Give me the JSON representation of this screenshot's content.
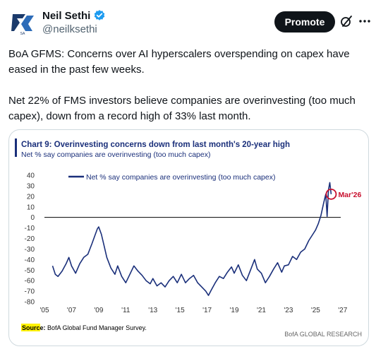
{
  "author": {
    "display_name": "Neil Sethi",
    "handle": "@neilksethi",
    "avatar_text": "SA"
  },
  "actions": {
    "promote_label": "Promote"
  },
  "tweet": {
    "paragraph1": "BoA GFMS: Concerns over AI hyperscalers overspending on capex have eased in the past few weeks.",
    "paragraph2": "Net 22% of FMS investors believe companies are overinvesting (too much capex), down from  a record high of 33% last month."
  },
  "colors": {
    "chart_line": "#1a2f7a",
    "accent_bar": "#1a2f7a",
    "highlight_circle": "#c8102e",
    "annotation_text": "#c8102e",
    "source_highlight": "#fff200",
    "verified": "#1d9bf0"
  },
  "icons": {
    "verified": "verified-badge-icon",
    "grok": "grok-icon",
    "more": "more-icon"
  },
  "chart_data": {
    "type": "line",
    "title": "Chart 9: Overinvesting concerns down from last month's 20-year high",
    "subtitle": "Net % say companies are overinvesting (too much capex)",
    "legend": "Net % say companies are overinvesting (too much capex)",
    "legend_position": "top-left",
    "annotation": "Mar'26",
    "source_label": "Source:",
    "source_text": " BofA Global Fund Manager Survey.",
    "footer": "BofA GLOBAL RESEARCH",
    "xlabel": "",
    "ylabel": "",
    "ylim": [
      -80,
      40
    ],
    "xlim": [
      2005,
      2028
    ],
    "yticks": [
      "40",
      "30",
      "20",
      "10",
      "0",
      "-10",
      "-20",
      "-30",
      "-40",
      "-50",
      "-60",
      "-70",
      "-80"
    ],
    "xticks": [
      "'05",
      "'07",
      "'09",
      "'11",
      "'13",
      "'15",
      "'17",
      "'19",
      "'21",
      "'23",
      "'25",
      "'27"
    ],
    "grid": false,
    "series": [
      {
        "name": "Net % say companies are overinvesting (too much capex)",
        "points": [
          [
            2005.6,
            -46
          ],
          [
            2005.8,
            -54
          ],
          [
            2006.0,
            -56
          ],
          [
            2006.3,
            -51
          ],
          [
            2006.6,
            -44
          ],
          [
            2006.8,
            -38
          ],
          [
            2007.0,
            -46
          ],
          [
            2007.3,
            -53
          ],
          [
            2007.6,
            -44
          ],
          [
            2007.9,
            -38
          ],
          [
            2008.2,
            -35
          ],
          [
            2008.5,
            -25
          ],
          [
            2008.7,
            -18
          ],
          [
            2008.9,
            -11
          ],
          [
            2009.0,
            -9
          ],
          [
            2009.2,
            -16
          ],
          [
            2009.4,
            -27
          ],
          [
            2009.6,
            -38
          ],
          [
            2009.9,
            -48
          ],
          [
            2010.2,
            -54
          ],
          [
            2010.4,
            -46
          ],
          [
            2010.7,
            -56
          ],
          [
            2011.0,
            -62
          ],
          [
            2011.3,
            -54
          ],
          [
            2011.6,
            -46
          ],
          [
            2011.9,
            -51
          ],
          [
            2012.2,
            -55
          ],
          [
            2012.5,
            -60
          ],
          [
            2012.8,
            -63
          ],
          [
            2013.0,
            -58
          ],
          [
            2013.3,
            -65
          ],
          [
            2013.6,
            -62
          ],
          [
            2013.9,
            -66
          ],
          [
            2014.2,
            -60
          ],
          [
            2014.5,
            -56
          ],
          [
            2014.8,
            -62
          ],
          [
            2015.1,
            -54
          ],
          [
            2015.4,
            -62
          ],
          [
            2015.7,
            -58
          ],
          [
            2016.0,
            -55
          ],
          [
            2016.3,
            -62
          ],
          [
            2016.6,
            -66
          ],
          [
            2016.9,
            -70
          ],
          [
            2017.1,
            -74
          ],
          [
            2017.3,
            -69
          ],
          [
            2017.6,
            -62
          ],
          [
            2017.9,
            -56
          ],
          [
            2018.2,
            -58
          ],
          [
            2018.5,
            -52
          ],
          [
            2018.8,
            -47
          ],
          [
            2019.0,
            -53
          ],
          [
            2019.3,
            -45
          ],
          [
            2019.6,
            -55
          ],
          [
            2019.9,
            -60
          ],
          [
            2020.2,
            -50
          ],
          [
            2020.5,
            -40
          ],
          [
            2020.7,
            -49
          ],
          [
            2021.0,
            -53
          ],
          [
            2021.3,
            -62
          ],
          [
            2021.6,
            -56
          ],
          [
            2021.9,
            -49
          ],
          [
            2022.2,
            -43
          ],
          [
            2022.5,
            -52
          ],
          [
            2022.7,
            -46
          ],
          [
            2023.0,
            -45
          ],
          [
            2023.3,
            -37
          ],
          [
            2023.6,
            -40
          ],
          [
            2023.9,
            -33
          ],
          [
            2024.2,
            -30
          ],
          [
            2024.5,
            -22
          ],
          [
            2024.8,
            -16
          ],
          [
            2025.0,
            -12
          ],
          [
            2025.2,
            -6
          ],
          [
            2025.4,
            2
          ],
          [
            2025.6,
            14
          ],
          [
            2025.75,
            22
          ],
          [
            2025.85,
            1
          ],
          [
            2025.95,
            26
          ],
          [
            2026.05,
            33
          ],
          [
            2026.15,
            22
          ]
        ]
      }
    ]
  }
}
